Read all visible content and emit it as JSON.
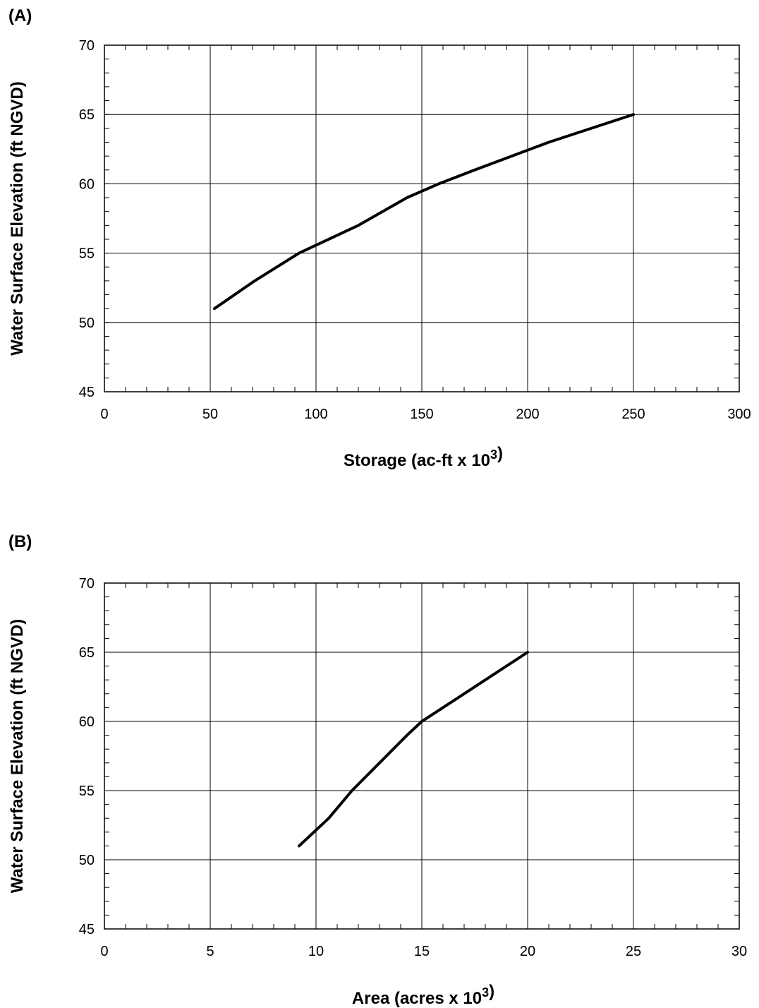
{
  "chart_data": [
    {
      "type": "line",
      "panel_label": "(A)",
      "xlabel": "Storage (ac-ft x 10",
      "xlabel_sup": "3",
      "xlabel_end": ")",
      "ylabel": "Water Surface Elevation (ft NGVD)",
      "xlim": [
        0,
        300
      ],
      "ylim": [
        45,
        70
      ],
      "x_ticks": [
        0,
        50,
        100,
        150,
        200,
        250,
        300
      ],
      "y_ticks": [
        45,
        50,
        55,
        60,
        65,
        70
      ],
      "x_minor_step": 10,
      "y_minor_step": 1,
      "grid": true,
      "line_color": "#000000",
      "series": [
        {
          "x": [
            52,
            71,
            92,
            120,
            143,
            158,
            175,
            210,
            250
          ],
          "y": [
            51,
            53,
            55,
            57,
            59,
            60,
            61,
            63,
            65
          ]
        }
      ]
    },
    {
      "type": "line",
      "panel_label": "(B)",
      "xlabel": "Area (acres x 10",
      "xlabel_sup": "3",
      "xlabel_end": ")",
      "ylabel": "Water Surface Elevation (ft NGVD)",
      "xlim": [
        0,
        30
      ],
      "ylim": [
        45,
        70
      ],
      "x_ticks": [
        0,
        5,
        10,
        15,
        20,
        25,
        30
      ],
      "y_ticks": [
        45,
        50,
        55,
        60,
        65,
        70
      ],
      "x_minor_step": 1,
      "y_minor_step": 1,
      "grid": true,
      "line_color": "#000000",
      "series": [
        {
          "x": [
            9.2,
            10.6,
            11.7,
            14.3,
            15.0,
            16.0,
            18.0,
            20.0
          ],
          "y": [
            51,
            53,
            55,
            59,
            60,
            61,
            63,
            65
          ]
        }
      ]
    }
  ]
}
